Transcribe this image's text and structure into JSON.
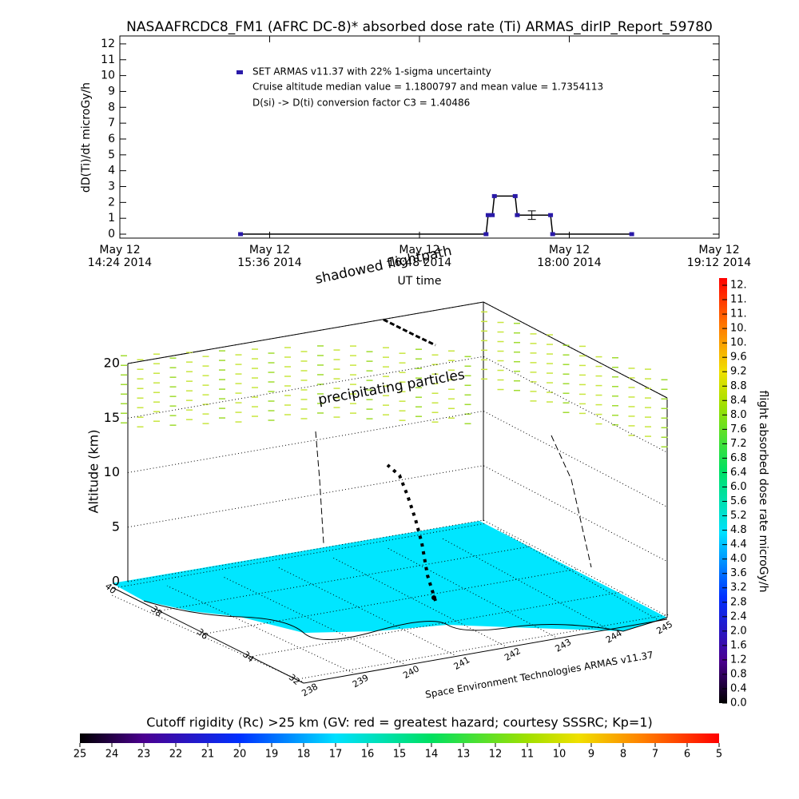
{
  "chart_data": {
    "type": "line",
    "title": "NASAAFRCDC8_FM1 (AFRC DC-8)* absorbed dose rate (Ti) ARMAS_dirIP_Report_59780",
    "x_label": "UT time",
    "y_label": "dD(Ti)/dt microGy/h",
    "x": [
      "2014-05-12T15:22",
      "2014-05-12T17:20",
      "2014-05-12T17:21",
      "2014-05-12T17:23",
      "2014-05-12T17:24",
      "2014-05-12T17:34",
      "2014-05-12T17:35",
      "2014-05-12T17:51",
      "2014-05-12T17:52",
      "2014-05-12T18:30"
    ],
    "series": [
      {
        "name": "SET ARMAS v11.37 with 22% 1-sigma uncertainty",
        "color": "#2a1aa8",
        "values": [
          0,
          0,
          1.2,
          1.2,
          2.4,
          2.4,
          1.2,
          1.2,
          0,
          0
        ]
      }
    ],
    "error_bar": {
      "x": "2014-05-12T17:42",
      "value": 1.2,
      "error": 0.27
    },
    "annotations": [
      "Cruise altitude median value = 1.1800797 and mean value = 1.7354113",
      "D(si) -> D(ti) conversion factor C3 = 1.40486"
    ],
    "xlim": [
      "2014-05-12T14:24",
      "2014-05-12T19:12"
    ],
    "xticks": [
      {
        "value": "2014-05-12T14:24",
        "label": "May 12\n14:24 2014"
      },
      {
        "value": "2014-05-12T15:36",
        "label": "May 12\n15:36 2014"
      },
      {
        "value": "2014-05-12T16:48",
        "label": "May 12\n16:48 2014"
      },
      {
        "value": "2014-05-12T18:00",
        "label": "May 12\n18:00 2014"
      },
      {
        "value": "2014-05-12T19:12",
        "label": "May 12\n19:12 2014"
      }
    ],
    "ylim": [
      -0.25,
      12.5
    ],
    "yticks": [
      0,
      1,
      2,
      3,
      4,
      5,
      6,
      7,
      8,
      9,
      10,
      11,
      12
    ]
  },
  "plot3d": {
    "z_label": "Altitude (km)",
    "zlim": [
      0,
      20
    ],
    "zticks": [
      0,
      5,
      10,
      15,
      20
    ],
    "lonlim": [
      238,
      245
    ],
    "lonticks": [
      238,
      239,
      240,
      241,
      242,
      243,
      244,
      245
    ],
    "latlim": [
      40,
      32
    ],
    "latticks": [
      40,
      38,
      36,
      34,
      32
    ],
    "annotations": [
      "shadowed flightpath",
      "precipitating particles"
    ],
    "credit": "Space Environment Technologies ARMAS v11.37"
  },
  "dose_colorbar": {
    "label": "flight absorbed dose rate microGy/h",
    "lim": [
      0,
      11.8
    ],
    "ticks": [
      {
        "value": 0,
        "label": "0.0"
      },
      0.4,
      0.8,
      1.2,
      1.6,
      {
        "value": 2,
        "label": "2.0"
      },
      2.4,
      2.8,
      3.2,
      3.6,
      {
        "value": 4,
        "label": "4.0"
      },
      4.4,
      4.8,
      5.2,
      5.6,
      {
        "value": 6,
        "label": "6.0"
      },
      6.4,
      6.8,
      7.2,
      7.6,
      {
        "value": 8,
        "label": "8.0"
      },
      8.4,
      8.8,
      9.2,
      9.6,
      {
        "value": 10,
        "label": "10."
      },
      {
        "value": 10.4,
        "label": "10."
      },
      {
        "value": 10.8,
        "label": "11."
      },
      {
        "value": 11.2,
        "label": "11."
      },
      {
        "value": 11.6,
        "label": "12."
      }
    ]
  },
  "rigidity_colorbar": {
    "title": "Cutoff rigidity (Rc) >25 km (GV: red = greatest hazard; courtesy SSSRC; Kp=1)",
    "lim": [
      25,
      5
    ],
    "ticks": [
      25,
      24,
      23,
      22,
      21,
      20,
      19,
      18,
      17,
      16,
      15,
      14,
      13,
      12,
      11,
      10,
      9,
      8,
      7,
      6,
      5
    ]
  }
}
